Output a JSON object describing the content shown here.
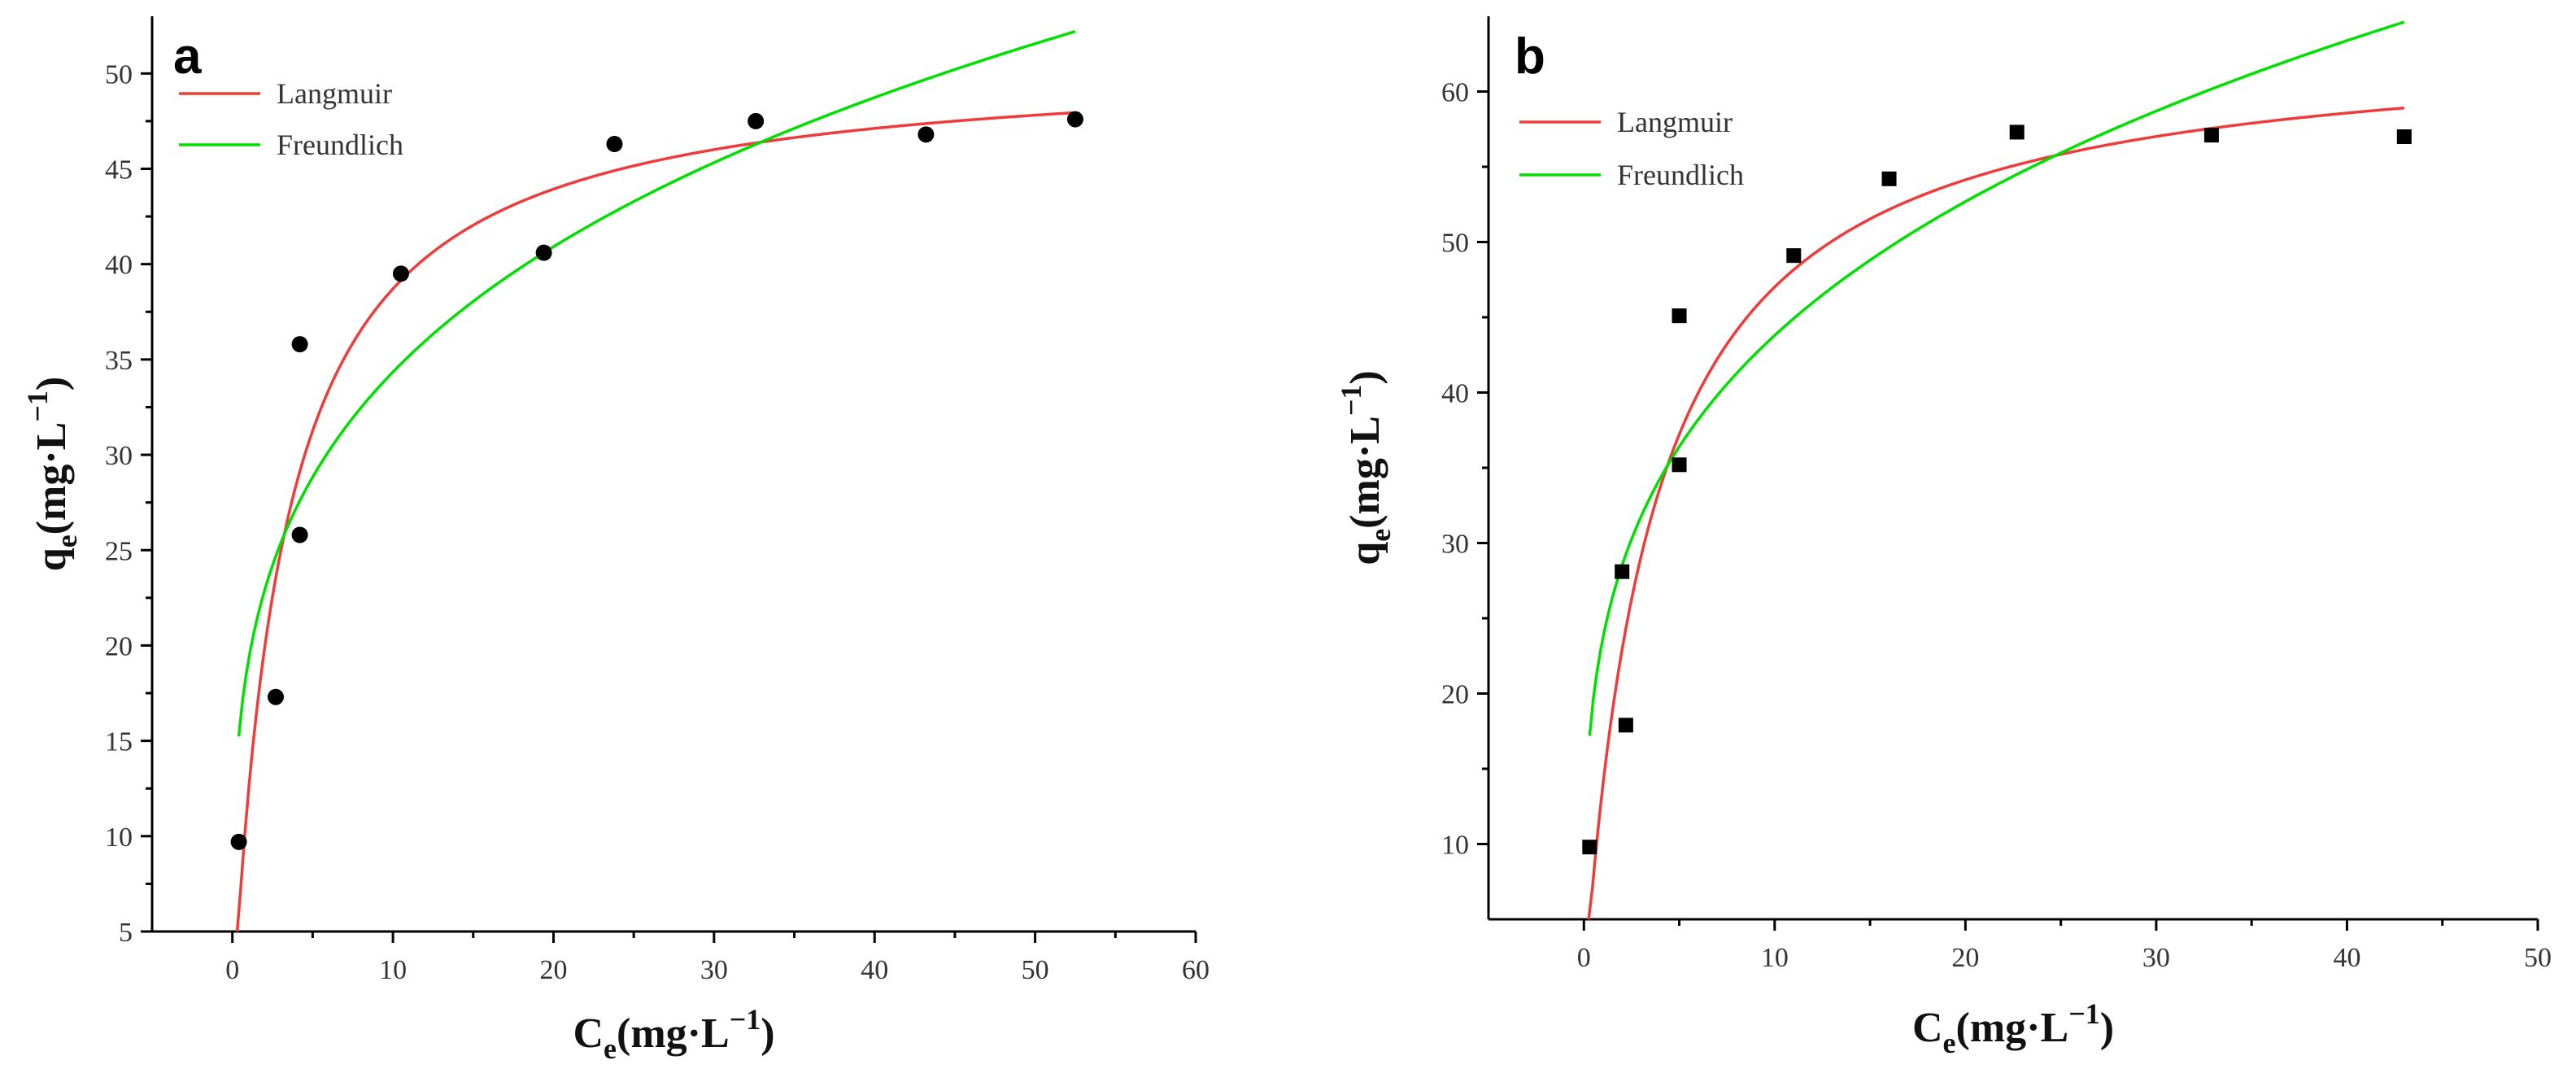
{
  "chart_data": [
    {
      "type": "scatter",
      "panel_label": "a",
      "marker": "circle",
      "xlabel_main": "C",
      "xlabel_sub": "e",
      "xlabel_unit": "(mg·L",
      "xlabel_exp": "−1",
      "xlabel_close": ")",
      "ylabel_main": "q",
      "ylabel_sub": "e",
      "ylabel_unit": "(mg·L",
      "ylabel_exp": "−1",
      "ylabel_close": ")",
      "xlim": [
        -5,
        60
      ],
      "ylim": [
        5,
        53
      ],
      "xticks": [
        0,
        10,
        20,
        30,
        40,
        50,
        60
      ],
      "yticks": [
        5,
        10,
        15,
        20,
        25,
        30,
        35,
        40,
        45,
        50
      ],
      "points": {
        "x": [
          0.4,
          2.7,
          4.2,
          4.2,
          10.5,
          19.4,
          23.8,
          32.6,
          43.2,
          52.5
        ],
        "y": [
          9.7,
          17.3,
          25.8,
          35.8,
          39.5,
          40.6,
          46.3,
          47.5,
          46.8,
          47.6
        ]
      },
      "legend": [
        {
          "name": "Langmuir",
          "color": "#ee3b3b"
        },
        {
          "name": "Freundlich",
          "color": "#00e000"
        }
      ],
      "fits": {
        "langmuir": {
          "qmax": 50.8,
          "KL": 0.32,
          "x_from": 0.3,
          "x_to": 52.5
        },
        "freundlich": {
          "KF": 19.2,
          "n": 3.96,
          "x_from": 0.4,
          "x_to": 52.5
        }
      }
    },
    {
      "type": "scatter",
      "panel_label": "b",
      "marker": "square",
      "xlabel_main": "C",
      "xlabel_sub": "e",
      "xlabel_unit": "(mg·L",
      "xlabel_exp": "−1",
      "xlabel_close": ")",
      "ylabel_main": "q",
      "ylabel_sub": "e",
      "ylabel_unit": "(mg·L",
      "ylabel_exp": "−1",
      "ylabel_close": ")",
      "xlim": [
        -5,
        50
      ],
      "ylim": [
        5,
        65
      ],
      "xticks": [
        0,
        10,
        20,
        30,
        40,
        50
      ],
      "yticks": [
        10,
        20,
        30,
        40,
        50,
        60
      ],
      "points": {
        "x": [
          0.3,
          2.0,
          2.2,
          5.0,
          5.0,
          11.0,
          16.0,
          22.7,
          32.9,
          43.0
        ],
        "y": [
          9.8,
          28.1,
          17.9,
          35.2,
          45.1,
          49.1,
          54.2,
          57.3,
          57.1,
          57.0
        ]
      },
      "legend": [
        {
          "name": "Langmuir",
          "color": "#ee3b3b"
        },
        {
          "name": "Freundlich",
          "color": "#00e000"
        }
      ],
      "fits": {
        "langmuir": {
          "qmax": 63.8,
          "KL": 0.28,
          "x_from": 0.25,
          "x_to": 43.0
        },
        "freundlich": {
          "KF": 23.7,
          "n": 3.75,
          "x_from": 0.3,
          "x_to": 43.0
        }
      }
    }
  ]
}
